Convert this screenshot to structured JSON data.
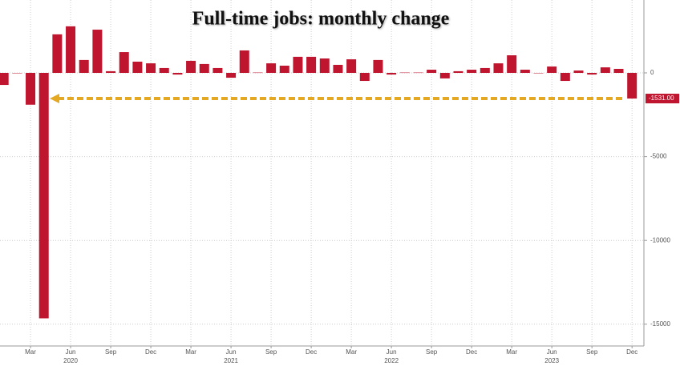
{
  "chart_data": {
    "type": "bar",
    "title": "Full-time jobs: monthly change",
    "categories": [
      null,
      null,
      "Mar",
      null,
      null,
      "Jun",
      null,
      null,
      "Sep",
      null,
      null,
      "Dec",
      null,
      null,
      "Mar",
      null,
      null,
      "Jun",
      null,
      null,
      "Sep",
      null,
      null,
      "Dec",
      null,
      null,
      "Mar",
      null,
      null,
      "Jun",
      null,
      null,
      "Sep",
      null,
      null,
      "Dec",
      null,
      null,
      "Mar",
      null,
      null,
      "Jun",
      null,
      null,
      "Sep",
      null,
      null,
      "Dec"
    ],
    "year_labels": [
      "2020",
      "2021",
      "2022",
      "2023"
    ],
    "values": [
      -720,
      0,
      -1900,
      -14650,
      2300,
      2780,
      770,
      2580,
      100,
      1240,
      670,
      570,
      290,
      -100,
      720,
      530,
      290,
      -290,
      1340,
      20,
      570,
      430,
      960,
      960,
      860,
      480,
      810,
      -480,
      770,
      -100,
      20,
      20,
      190,
      -330,
      100,
      190,
      290,
      570,
      1050,
      190,
      0,
      380,
      -480,
      140,
      -100,
      330,
      240,
      -1531
    ],
    "value_labels": {
      "47": "-1531.00"
    },
    "color": "#c0152f",
    "ylim": [
      -16300,
      4350
    ],
    "yticks": [
      0,
      -5000,
      -10000,
      -15000
    ],
    "grid": true
  }
}
